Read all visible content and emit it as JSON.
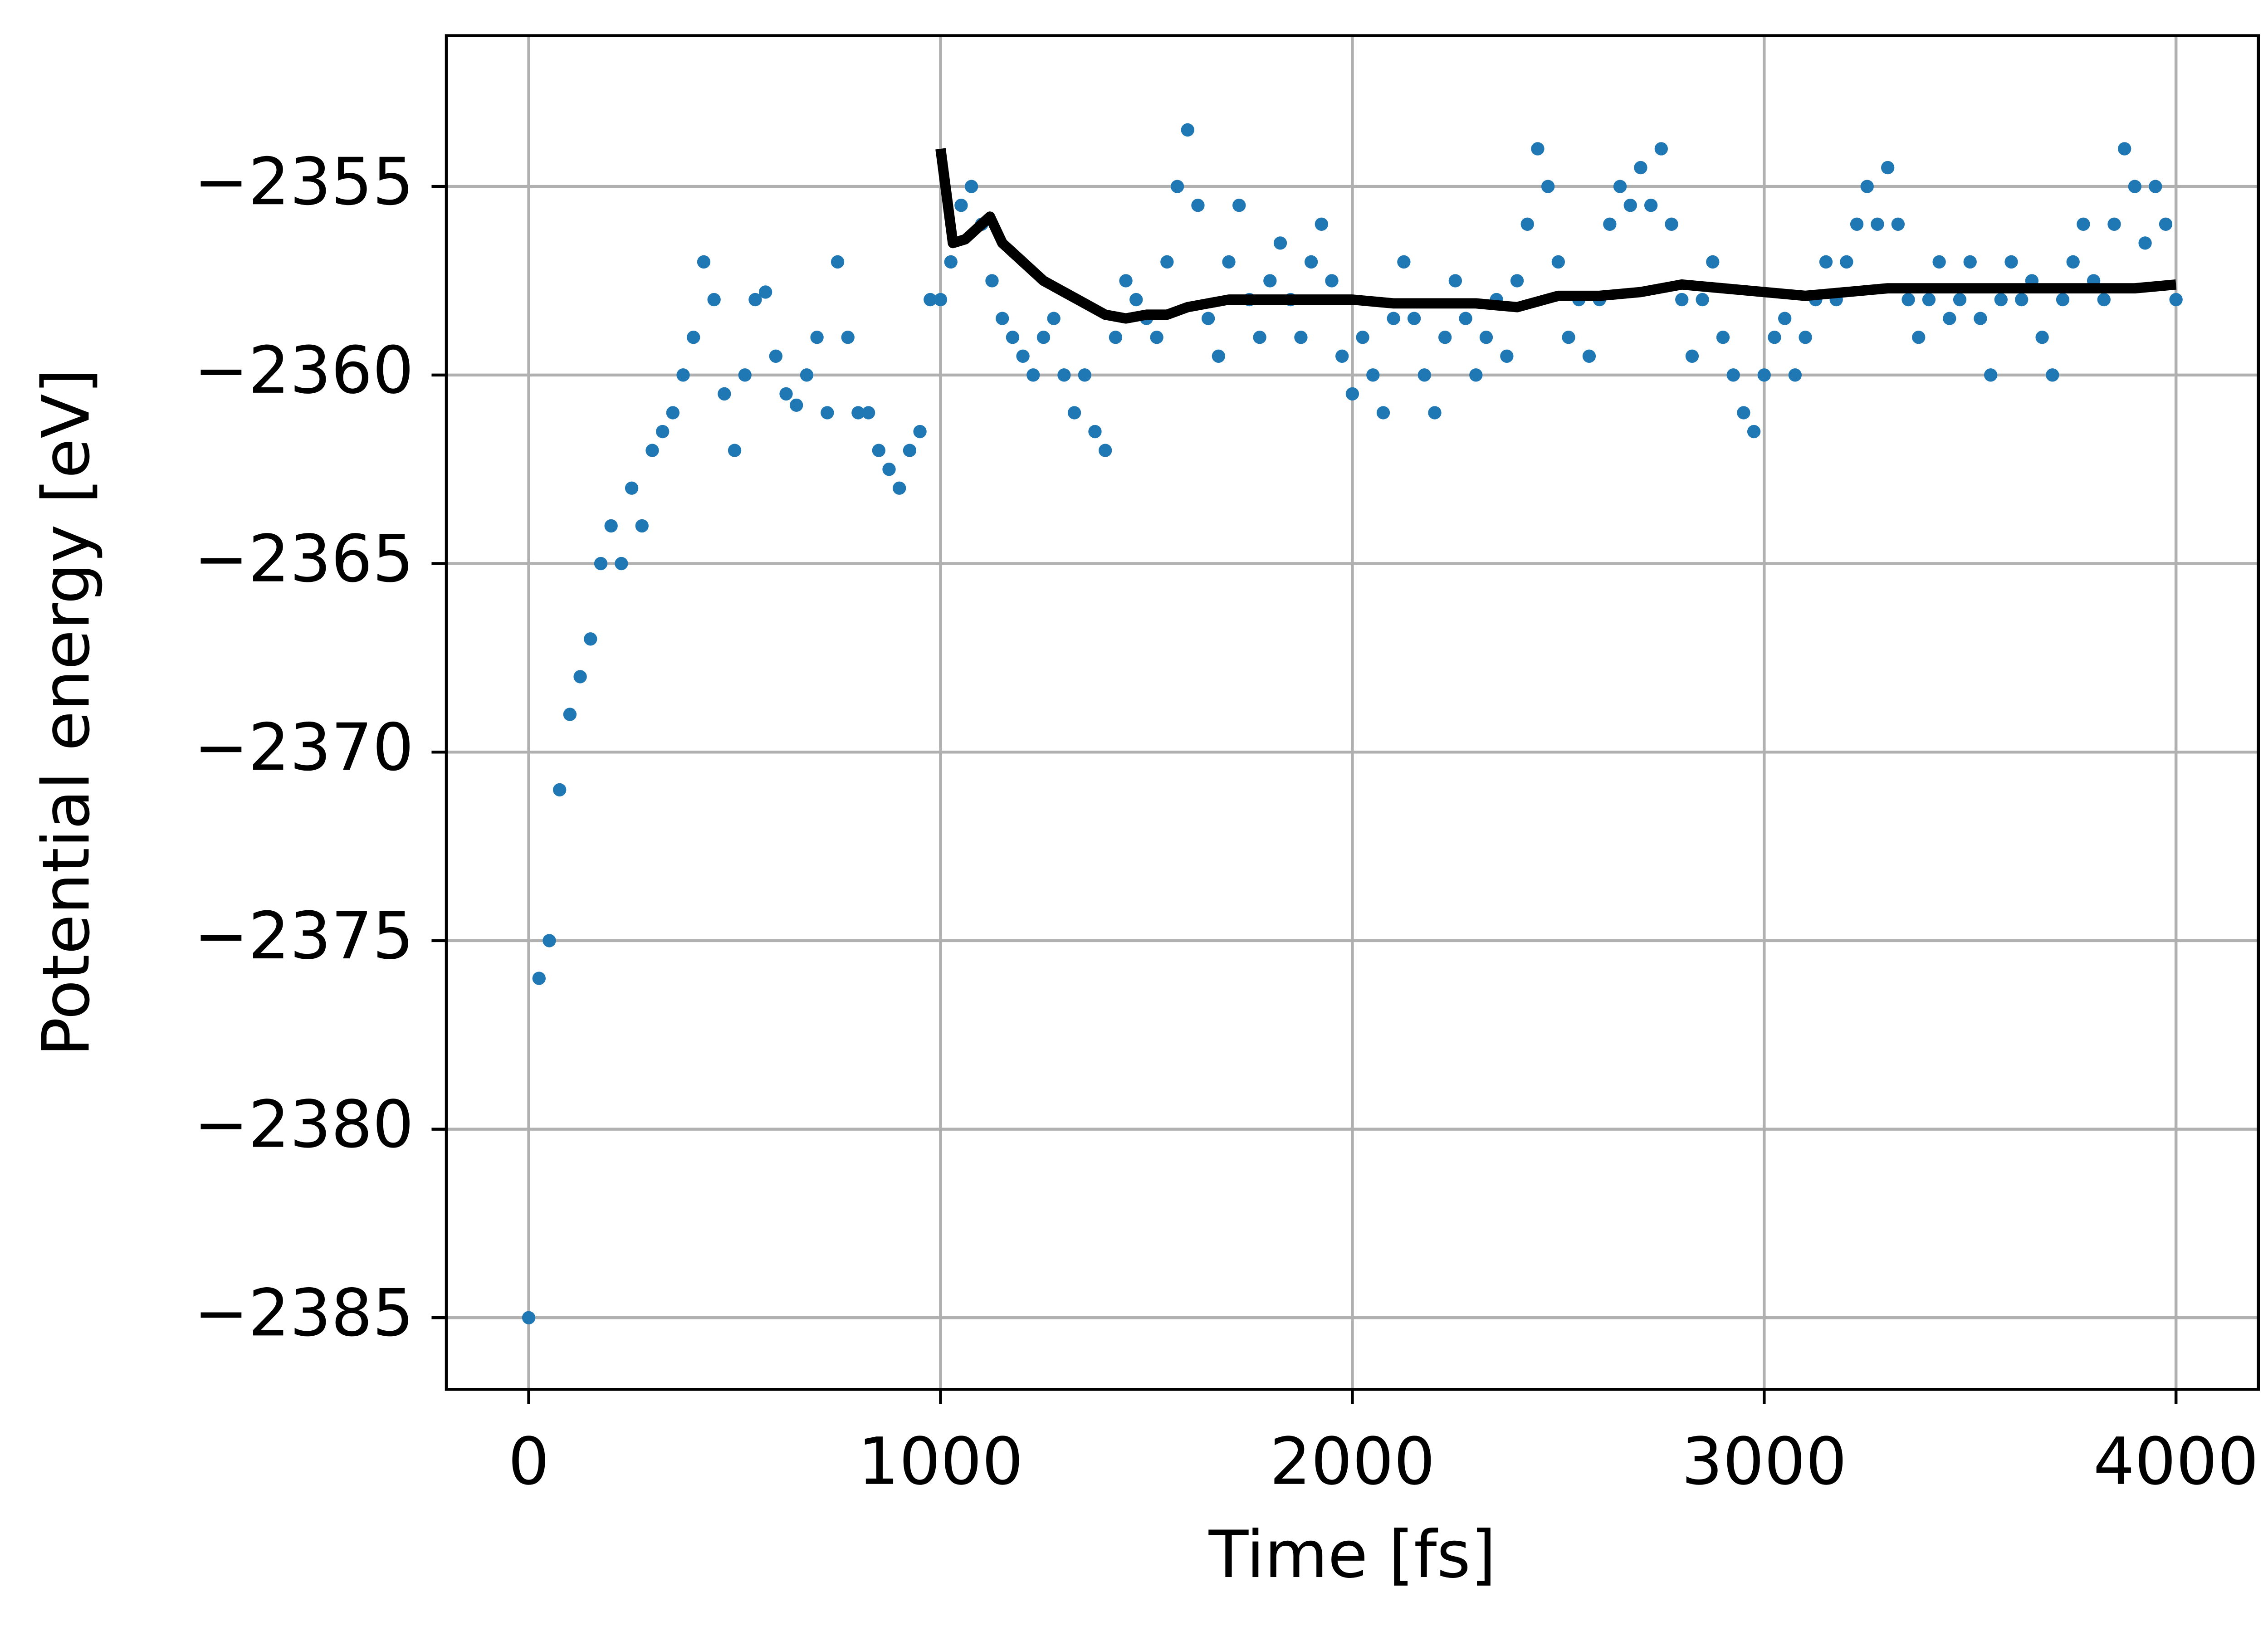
{
  "chart_data": {
    "type": "scatter",
    "xlabel": "Time [fs]",
    "ylabel": "Potential energy [eV]",
    "xlim": [
      -200,
      4200
    ],
    "ylim": [
      -2386.9,
      -2351.0
    ],
    "xticks": [
      0,
      1000,
      2000,
      3000,
      4000
    ],
    "yticks": [
      {
        "value": -2385,
        "label": "−2385"
      },
      {
        "value": -2380,
        "label": "−2380"
      },
      {
        "value": -2375,
        "label": "−2375"
      },
      {
        "value": -2370,
        "label": "−2370"
      },
      {
        "value": -2365,
        "label": "−2365"
      },
      {
        "value": -2360,
        "label": "−2360"
      },
      {
        "value": -2355,
        "label": "−2355"
      }
    ],
    "grid": true,
    "series": [
      {
        "type": "scatter",
        "color": "#1f77b4",
        "x": [
          0,
          25,
          50,
          75,
          100,
          125,
          150,
          175,
          200,
          225,
          250,
          275,
          300,
          325,
          350,
          375,
          400,
          425,
          450,
          475,
          500,
          525,
          550,
          575,
          600,
          625,
          650,
          675,
          700,
          725,
          750,
          775,
          800,
          825,
          850,
          875,
          900,
          925,
          950,
          975,
          1000,
          1025,
          1050,
          1075,
          1100,
          1125,
          1150,
          1175,
          1200,
          1225,
          1250,
          1275,
          1300,
          1325,
          1350,
          1375,
          1400,
          1425,
          1450,
          1475,
          1500,
          1525,
          1550,
          1575,
          1600,
          1625,
          1650,
          1675,
          1700,
          1725,
          1750,
          1775,
          1800,
          1825,
          1850,
          1875,
          1900,
          1925,
          1950,
          1975,
          2000,
          2025,
          2050,
          2075,
          2100,
          2125,
          2150,
          2175,
          2200,
          2225,
          2250,
          2275,
          2300,
          2325,
          2350,
          2375,
          2400,
          2425,
          2450,
          2475,
          2500,
          2525,
          2550,
          2575,
          2600,
          2625,
          2650,
          2675,
          2700,
          2725,
          2750,
          2775,
          2800,
          2825,
          2850,
          2875,
          2900,
          2925,
          2950,
          2975,
          3000,
          3025,
          3050,
          3075,
          3100,
          3125,
          3150,
          3175,
          3200,
          3225,
          3250,
          3275,
          3300,
          3325,
          3350,
          3375,
          3400,
          3425,
          3450,
          3475,
          3500,
          3525,
          3550,
          3575,
          3600,
          3625,
          3650,
          3675,
          3700,
          3725,
          3750,
          3775,
          3800,
          3825,
          3850,
          3875,
          3900,
          3925,
          3950,
          3975,
          4000
        ],
        "values": [
          -2385,
          -2376,
          -2375,
          -2371,
          -2369,
          -2368,
          -2367,
          -2365,
          -2364,
          -2365,
          -2363,
          -2364,
          -2362,
          -2361.5,
          -2361,
          -2360,
          -2359,
          -2357,
          -2358,
          -2360.5,
          -2362,
          -2360,
          -2358,
          -2357.8,
          -2359.5,
          -2360.5,
          -2360.8,
          -2360,
          -2359,
          -2361,
          -2357,
          -2359,
          -2361,
          -2361,
          -2362,
          -2362.5,
          -2363,
          -2362,
          -2361.5,
          -2358,
          -2358,
          -2357,
          -2355.5,
          -2355,
          -2356,
          -2357.5,
          -2358.5,
          -2359,
          -2359.5,
          -2360,
          -2359,
          -2358.5,
          -2360,
          -2361,
          -2360,
          -2361.5,
          -2362,
          -2359,
          -2357.5,
          -2358,
          -2358.5,
          -2359,
          -2357,
          -2355,
          -2353.5,
          -2355.5,
          -2358.5,
          -2359.5,
          -2357,
          -2355.5,
          -2358,
          -2359,
          -2357.5,
          -2356.5,
          -2358,
          -2359,
          -2357,
          -2356,
          -2357.5,
          -2359.5,
          -2360.5,
          -2359,
          -2360,
          -2361,
          -2358.5,
          -2357,
          -2358.5,
          -2360,
          -2361,
          -2359,
          -2357.5,
          -2358.5,
          -2360,
          -2359,
          -2358,
          -2359.5,
          -2357.5,
          -2356,
          -2354,
          -2355,
          -2357,
          -2359,
          -2358,
          -2359.5,
          -2358,
          -2356,
          -2355,
          -2355.5,
          -2354.5,
          -2355.5,
          -2354,
          -2356,
          -2358,
          -2359.5,
          -2358,
          -2357,
          -2359,
          -2360,
          -2361,
          -2361.5,
          -2360,
          -2359,
          -2358.5,
          -2360,
          -2359,
          -2358,
          -2357,
          -2358,
          -2357,
          -2356,
          -2355,
          -2356,
          -2354.5,
          -2356,
          -2358,
          -2359,
          -2358,
          -2357,
          -2358.5,
          -2358,
          -2357,
          -2358.5,
          -2360,
          -2358,
          -2357,
          -2358,
          -2357.5,
          -2359,
          -2360,
          -2358,
          -2357,
          -2356,
          -2357.5,
          -2358,
          -2356,
          -2354,
          -2355,
          -2356.5,
          -2355,
          -2356,
          -2358
        ]
      },
      {
        "type": "line",
        "color": "#000000",
        "x": [
          1000,
          1030,
          1060,
          1100,
          1120,
          1150,
          1200,
          1250,
          1300,
          1350,
          1400,
          1450,
          1500,
          1550,
          1600,
          1700,
          1800,
          1900,
          2000,
          2100,
          2200,
          2300,
          2400,
          2500,
          2600,
          2700,
          2800,
          2900,
          3000,
          3100,
          3200,
          3300,
          3400,
          3500,
          3600,
          3700,
          3800,
          3900,
          4000
        ],
        "values": [
          -2354,
          -2356.5,
          -2356.4,
          -2356,
          -2355.8,
          -2356.5,
          -2357,
          -2357.5,
          -2357.8,
          -2358.1,
          -2358.4,
          -2358.5,
          -2358.4,
          -2358.4,
          -2358.2,
          -2358,
          -2358,
          -2358,
          -2358,
          -2358.1,
          -2358.1,
          -2358.1,
          -2358.2,
          -2357.9,
          -2357.9,
          -2357.8,
          -2357.6,
          -2357.7,
          -2357.8,
          -2357.9,
          -2357.8,
          -2357.7,
          -2357.7,
          -2357.7,
          -2357.7,
          -2357.7,
          -2357.7,
          -2357.7,
          -2357.6
        ]
      }
    ]
  }
}
